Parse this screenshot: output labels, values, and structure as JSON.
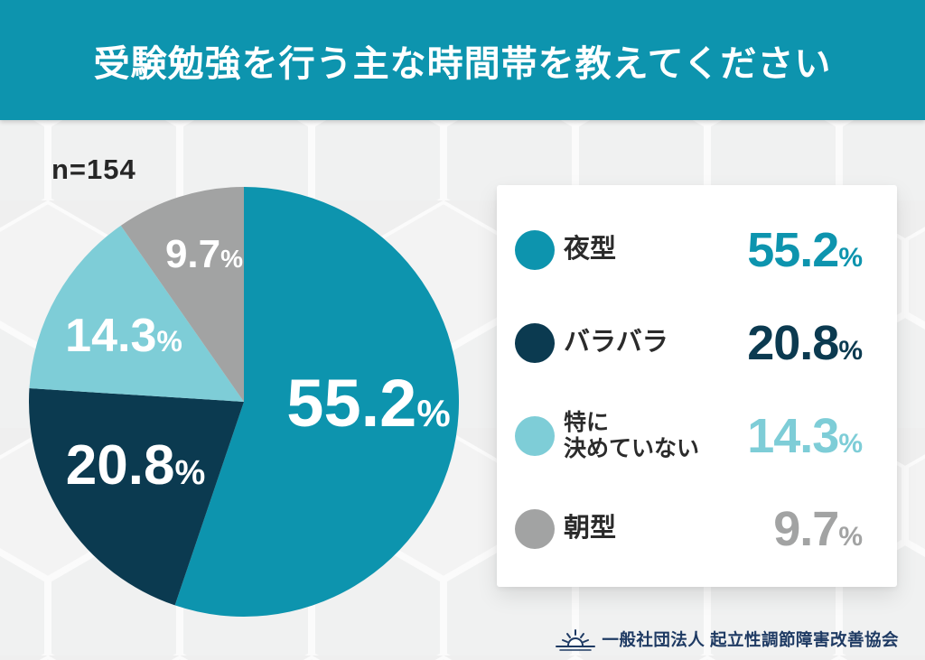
{
  "header": {
    "title": "受験勉強を行う主な時間帯を教えてください"
  },
  "sample_label": "n=154",
  "chart_data": {
    "type": "pie",
    "title": "受験勉強を行う主な時間帯を教えてください",
    "sample_size": 154,
    "unit": "%",
    "start_angle_deg": 0,
    "direction": "clockwise",
    "legend_position": "right",
    "slice_labels_shown": true,
    "series": [
      {
        "name": "夜型",
        "value": 55.2,
        "value_str": "55.2",
        "color": "#0d94ae"
      },
      {
        "name": "バラバラ",
        "value": 20.8,
        "value_str": "20.8",
        "color": "#0b3a50"
      },
      {
        "name": "特に\n決めていない",
        "value": 14.3,
        "value_str": "14.3",
        "color": "#7ecdd7"
      },
      {
        "name": "朝型",
        "value": 9.7,
        "value_str": "9.7",
        "color": "#a2a3a3"
      }
    ],
    "background_colors": {
      "page": "#efefef",
      "hexagon_fill": "#f3f3f3",
      "hexagon_stroke": "#fbfbfb",
      "legend_card": "#ffffff"
    }
  },
  "footer": {
    "org": "一般社団法人 起立性調節障害改善協会"
  }
}
